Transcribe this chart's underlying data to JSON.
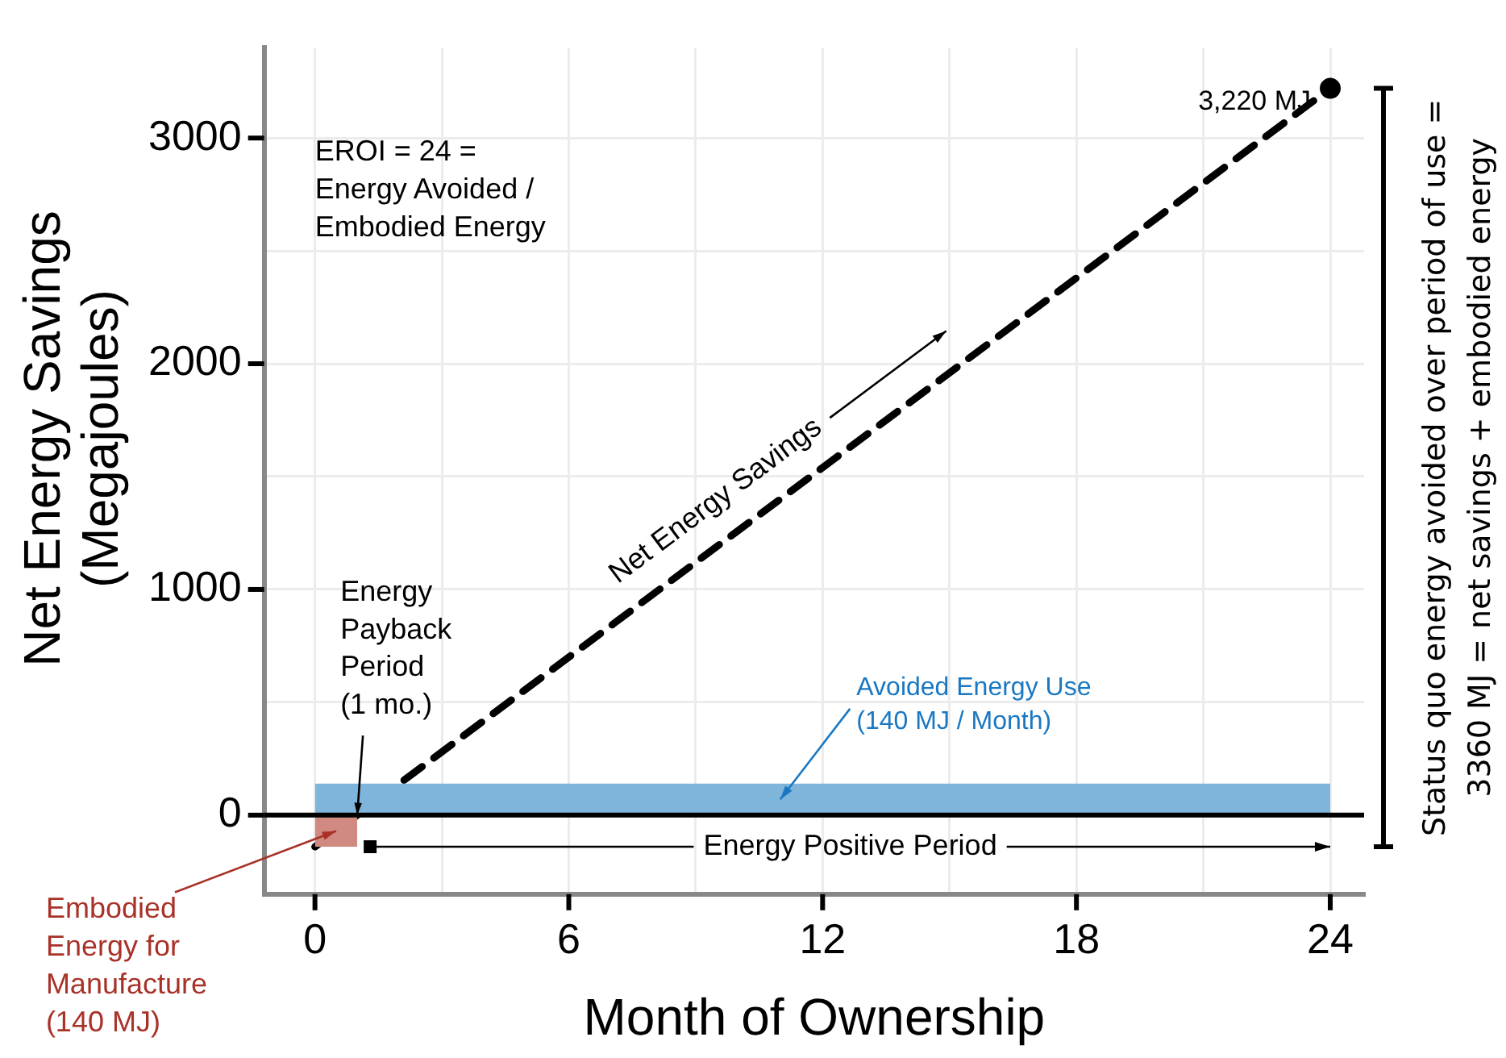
{
  "chart_data": {
    "type": "line",
    "xlabel": "Month of Ownership",
    "ylabel": "Net Energy Savings (Megajoules)",
    "y2label": "Status quo energy avoided over period of use = 3360 MJ = net savings + embodied energy",
    "xlim": [
      -1.2,
      24.8
    ],
    "xticks": [
      0,
      {
        "value": 3,
        "label": null
      },
      6,
      {
        "value": 9,
        "label": null
      },
      12,
      {
        "value": 15,
        "label": null
      },
      18,
      {
        "value": 21,
        "label": null
      },
      24
    ],
    "ylim": [
      -350,
      3400
    ],
    "yticks": [
      0,
      {
        "value": 500,
        "label": null
      },
      1000,
      {
        "value": 1500,
        "label": null
      },
      2000,
      {
        "value": 2500,
        "label": null
      },
      3000
    ],
    "grid": true,
    "legend": false,
    "series": [
      {
        "type": "area",
        "color": "#7fb5da",
        "x": [
          0,
          24
        ],
        "values": [
          140,
          140
        ]
      },
      {
        "type": "area",
        "color": "#d08a82",
        "x": [
          0,
          1
        ],
        "values": [
          -140,
          -140
        ]
      },
      {
        "color": "#000000",
        "line_style": "dashed",
        "marker": "none",
        "x": [
          0,
          24
        ],
        "values": [
          -140,
          3220
        ]
      },
      {
        "type": "scatter",
        "color": "#000000",
        "marker": "circle",
        "x": [
          24
        ],
        "values": [
          3220
        ]
      }
    ],
    "ref_lines": [
      {
        "axis": "y",
        "value": 0,
        "color": "#000000"
      }
    ],
    "annotations": [
      "EROI = 24 = Energy Avoided / Embodied Energy",
      {
        "text": "Net Energy Savings",
        "x": 10,
        "y": 1260
      },
      {
        "text": "Energy Payback Period (1 mo.)",
        "x": 1,
        "y": 0
      },
      "Avoided Energy Use (140 MJ / Month)",
      "Energy Positive Period",
      {
        "text": "Embodied Energy for Manufacture (140 MJ)",
        "x": 0.5,
        "y": -70
      },
      {
        "text": "3,220 MJ",
        "x": 24,
        "y": 3220
      }
    ]
  }
}
